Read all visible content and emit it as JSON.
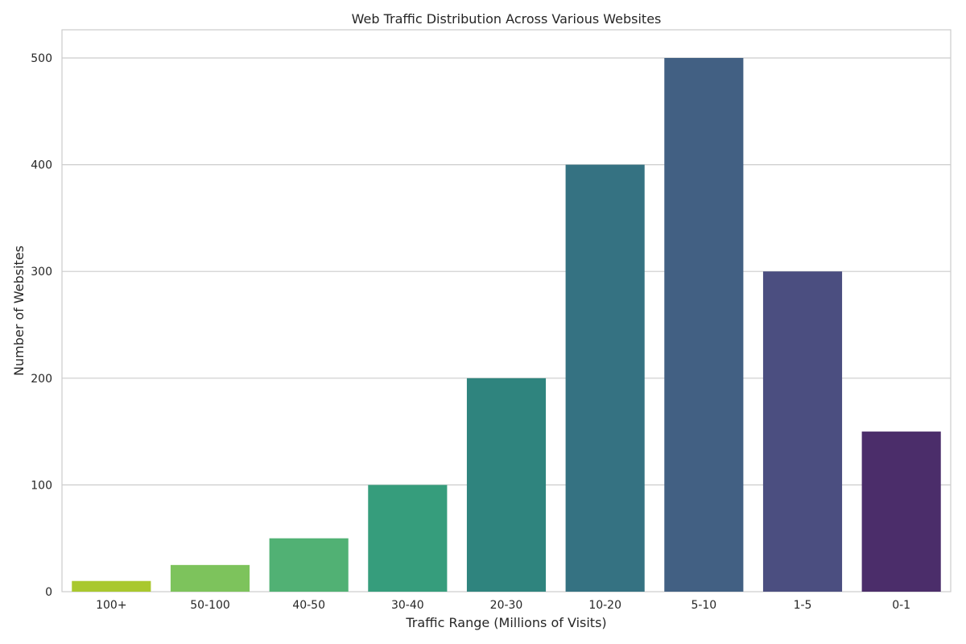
{
  "chart_data": {
    "type": "bar",
    "title": "Web Traffic Distribution Across Various Websites",
    "xlabel": "Traffic Range (Millions of Visits)",
    "ylabel": "Number of Websites",
    "categories": [
      "100+",
      "50-100",
      "40-50",
      "30-40",
      "20-30",
      "10-20",
      "5-10",
      "1-5",
      "0-1"
    ],
    "values": [
      10,
      25,
      50,
      100,
      200,
      400,
      500,
      300,
      150
    ],
    "colors": [
      "#a9c82e",
      "#7dc35c",
      "#51b174",
      "#369d7c",
      "#2f847e",
      "#357282",
      "#426083",
      "#4b4e80",
      "#4b2d6a"
    ],
    "ylim": [
      0,
      525
    ],
    "yticks": [
      0,
      100,
      200,
      300,
      400,
      500
    ],
    "grid": true,
    "legend": "none"
  }
}
